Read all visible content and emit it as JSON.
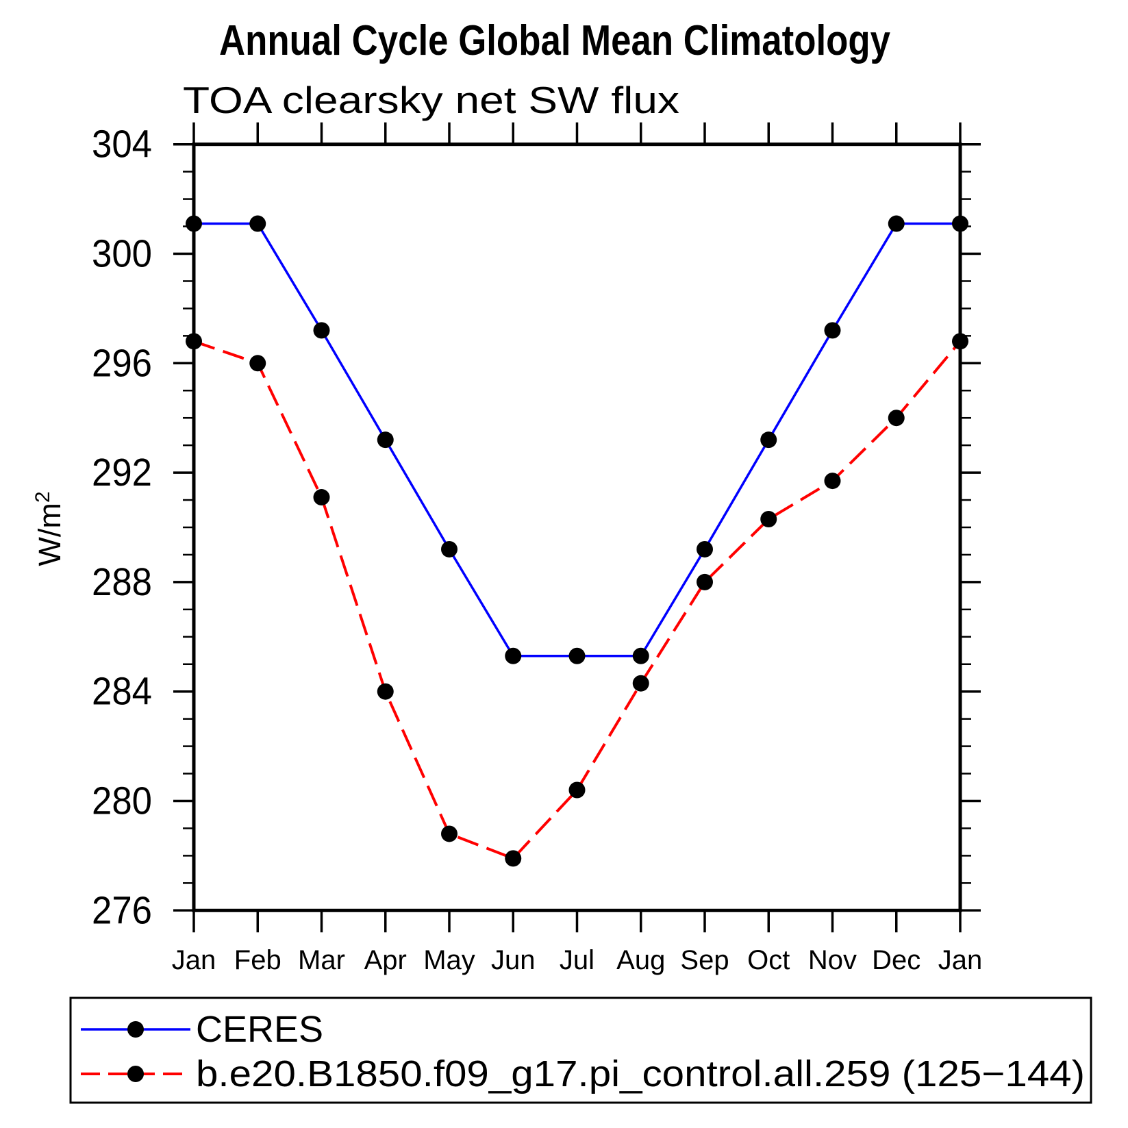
{
  "chart_data": {
    "type": "line",
    "title": "Annual Cycle Global Mean Climatology",
    "subtitle": "TOA clearsky net SW flux",
    "ylabel": "W/m²",
    "ylabel_base": "W/m",
    "ylabel_exponent": "2",
    "categories": [
      "Jan",
      "Feb",
      "Mar",
      "Apr",
      "May",
      "Jun",
      "Jul",
      "Aug",
      "Sep",
      "Oct",
      "Nov",
      "Dec",
      "Jan"
    ],
    "ylim": [
      276,
      304
    ],
    "y_major_tick_step": 4,
    "y_minor_tick_step": 1,
    "y_major_ticks": [
      276,
      280,
      284,
      288,
      292,
      296,
      300,
      304
    ],
    "grid": "off",
    "legend_position": "bottom-box",
    "marker": "filled-black-circle",
    "series": [
      {
        "name": "CERES",
        "color": "#0000ff",
        "line_style": "solid",
        "values": [
          301.1,
          301.1,
          297.2,
          293.2,
          289.2,
          285.3,
          285.3,
          285.3,
          289.2,
          293.2,
          297.2,
          301.1,
          301.1
        ]
      },
      {
        "name": "b.e20.B1850.f09_g17.pi_control.all.259 (125−144)",
        "color": "#ff0000",
        "line_style": "dashed",
        "values": [
          296.8,
          296.0,
          291.1,
          284.0,
          278.8,
          277.9,
          280.4,
          284.3,
          288.0,
          290.3,
          291.7,
          294.0,
          296.8
        ]
      }
    ]
  }
}
